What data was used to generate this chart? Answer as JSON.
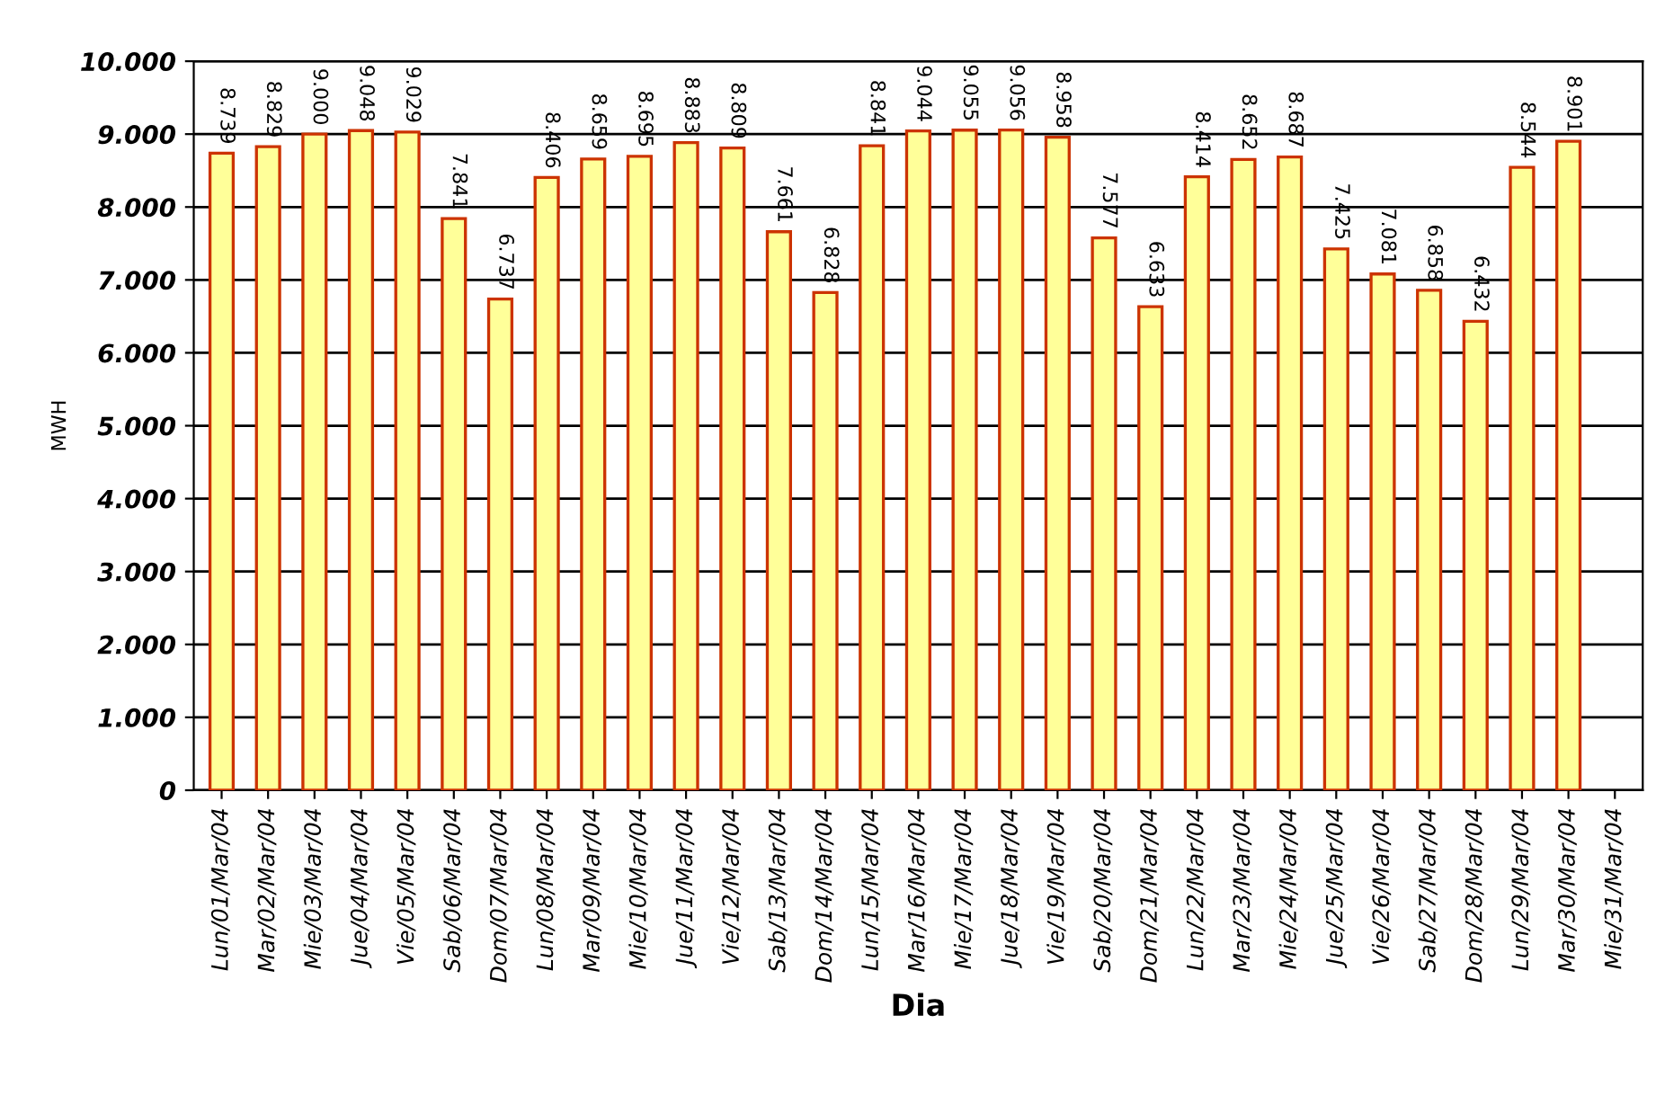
{
  "chart_data": {
    "type": "bar",
    "xlabel": "Dia",
    "ylabel": "MWH",
    "categories": [
      "Lun/01/Mar/04",
      "Mar/02/Mar/04",
      "Mie/03/Mar/04",
      "Jue/04/Mar/04",
      "Vie/05/Mar/04",
      "Sab/06/Mar/04",
      "Dom/07/Mar/04",
      "Lun/08/Mar/04",
      "Mar/09/Mar/04",
      "Mie/10/Mar/04",
      "Jue/11/Mar/04",
      "Vie/12/Mar/04",
      "Sab/13/Mar/04",
      "Dom/14/Mar/04",
      "Lun/15/Mar/04",
      "Mar/16/Mar/04",
      "Mie/17/Mar/04",
      "Jue/18/Mar/04",
      "Vie/19/Mar/04",
      "Sab/20/Mar/04",
      "Dom/21/Mar/04",
      "Lun/22/Mar/04",
      "Mar/23/Mar/04",
      "Mie/24/Mar/04",
      "Jue/25/Mar/04",
      "Vie/26/Mar/04",
      "Sab/27/Mar/04",
      "Dom/28/Mar/04",
      "Lun/29/Mar/04",
      "Mar/30/Mar/04",
      "Mie/31/Mar/04"
    ],
    "values": [
      8739,
      8829,
      9000,
      9048,
      9029,
      7841,
      6737,
      8406,
      8659,
      8695,
      8883,
      8809,
      7661,
      6828,
      8841,
      9044,
      9055,
      9056,
      8958,
      7577,
      6633,
      8414,
      8652,
      8687,
      7425,
      7081,
      6858,
      6432,
      8544,
      8901,
      null
    ],
    "value_labels": [
      "8.739",
      "8.829",
      "9.000",
      "9.048",
      "9.029",
      "7.841",
      "6.737",
      "8.406",
      "8.659",
      "8.695",
      "8.883",
      "8.809",
      "7.661",
      "6.828",
      "8.841",
      "9.044",
      "9.055",
      "9.056",
      "8.958",
      "7.577",
      "6.633",
      "8.414",
      "8.652",
      "8.687",
      "7.425",
      "7.081",
      "6.858",
      "6.432",
      "8.544",
      "8.901",
      null
    ],
    "color": "#ffff99",
    "ylim": [
      0,
      10000
    ],
    "yticks": [
      {
        "value": 0,
        "label": "0"
      },
      {
        "value": 1000,
        "label": "1.000"
      },
      {
        "value": 2000,
        "label": "2.000"
      },
      {
        "value": 3000,
        "label": "3.000"
      },
      {
        "value": 4000,
        "label": "4.000"
      },
      {
        "value": 5000,
        "label": "5.000"
      },
      {
        "value": 6000,
        "label": "6.000"
      },
      {
        "value": 7000,
        "label": "7.000"
      },
      {
        "value": 8000,
        "label": "8.000"
      },
      {
        "value": 9000,
        "label": "9.000"
      },
      {
        "value": 10000,
        "label": "10.000"
      }
    ],
    "grid": "y"
  }
}
